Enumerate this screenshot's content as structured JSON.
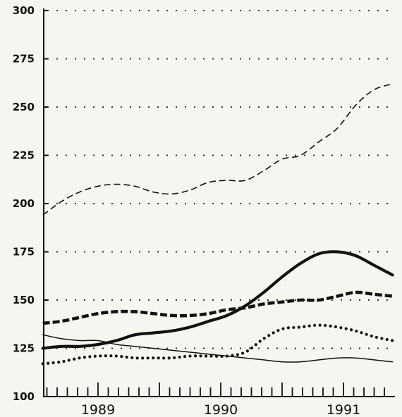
{
  "chart_data": {
    "type": "line",
    "title": "",
    "xlabel": "",
    "ylabel": "",
    "x_ticks": [
      "1989",
      "1990",
      "1991"
    ],
    "x_range": [
      1988.5,
      1991.9
    ],
    "ylim": [
      100,
      300
    ],
    "y_ticks": [
      100,
      125,
      150,
      175,
      200,
      225,
      250,
      275,
      300
    ],
    "y_grid_ticks": [
      125,
      150,
      175,
      200,
      225,
      250,
      275,
      300
    ],
    "grid": "dotted horizontal",
    "legend": "none",
    "series": [
      {
        "style": "thin-dashed",
        "color": "#111111",
        "x": [
          1988.55,
          1988.7,
          1988.85,
          1989.0,
          1989.15,
          1989.3,
          1989.45,
          1989.6,
          1989.75,
          1989.9,
          1990.05,
          1990.2,
          1990.35,
          1990.5,
          1990.65,
          1990.8,
          1990.95,
          1991.1,
          1991.25,
          1991.4
        ],
        "y": [
          194,
          201,
          206,
          209,
          210,
          209,
          206,
          205,
          207,
          211,
          212,
          212,
          217,
          223,
          225,
          232,
          239,
          251,
          259,
          262
        ]
      },
      {
        "style": "thick-solid",
        "color": "#111111",
        "x": [
          1988.55,
          1988.7,
          1988.85,
          1989.0,
          1989.15,
          1989.3,
          1989.45,
          1989.6,
          1989.75,
          1989.9,
          1990.05,
          1990.2,
          1990.35,
          1990.5,
          1990.65,
          1990.8,
          1990.95,
          1991.1,
          1991.25,
          1991.4
        ],
        "y": [
          125,
          126,
          126,
          127,
          129,
          132,
          133,
          134,
          136,
          139,
          142,
          147,
          154,
          162,
          169,
          174,
          175,
          173,
          168,
          163
        ]
      },
      {
        "style": "thick-dashed",
        "color": "#111111",
        "x": [
          1988.55,
          1988.7,
          1988.85,
          1989.0,
          1989.15,
          1989.3,
          1989.45,
          1989.6,
          1989.75,
          1989.9,
          1990.05,
          1990.2,
          1990.35,
          1990.5,
          1990.65,
          1990.8,
          1990.95,
          1991.1,
          1991.25,
          1991.4
        ],
        "y": [
          138,
          139,
          141,
          143,
          144,
          144,
          143,
          142,
          142,
          143,
          145,
          146,
          148,
          149,
          150,
          150,
          152,
          154,
          153,
          152
        ]
      },
      {
        "style": "thin-solid",
        "color": "#111111",
        "x": [
          1988.55,
          1988.7,
          1988.85,
          1989.0,
          1989.15,
          1989.3,
          1989.45,
          1989.6,
          1989.75,
          1989.9,
          1990.05,
          1990.2,
          1990.35,
          1990.5,
          1990.65,
          1990.8,
          1990.95,
          1991.1,
          1991.25,
          1991.4
        ],
        "y": [
          132,
          130,
          129,
          129,
          127,
          126,
          125,
          124,
          123,
          122,
          121,
          120,
          119,
          118,
          118,
          119,
          120,
          120,
          119,
          118
        ]
      },
      {
        "style": "thick-dotted",
        "color": "#111111",
        "x": [
          1988.55,
          1988.7,
          1988.85,
          1989.0,
          1989.15,
          1989.3,
          1989.45,
          1989.6,
          1989.75,
          1989.9,
          1990.05,
          1990.2,
          1990.35,
          1990.5,
          1990.65,
          1990.8,
          1990.95,
          1991.1,
          1991.25,
          1991.4
        ],
        "y": [
          117,
          118,
          120,
          121,
          121,
          120,
          120,
          120,
          121,
          121,
          121,
          123,
          130,
          135,
          136,
          137,
          136,
          134,
          131,
          129
        ]
      }
    ]
  }
}
